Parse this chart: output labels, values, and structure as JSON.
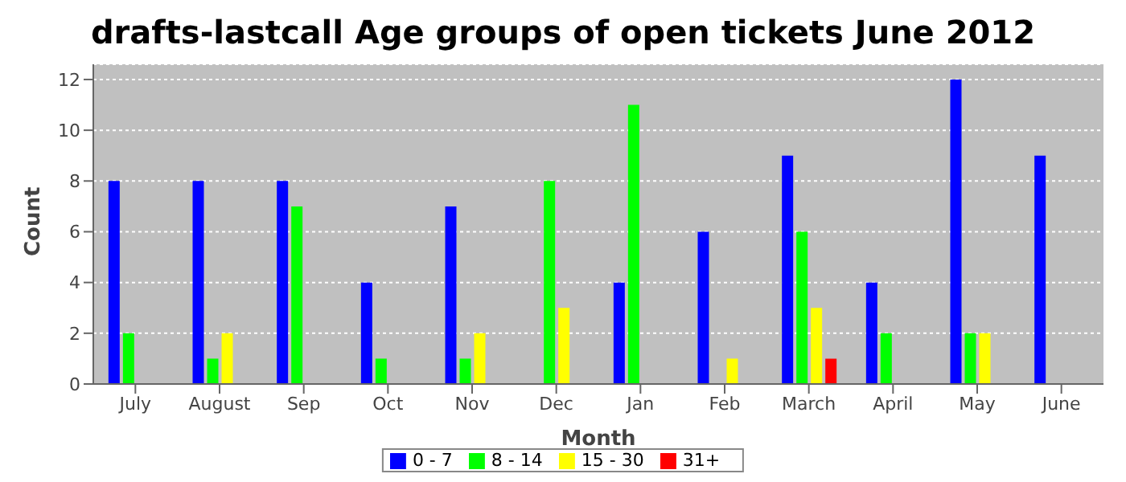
{
  "chart_data": {
    "type": "bar",
    "title": "drafts-lastcall Age groups of open tickets June 2012",
    "xlabel": "Month",
    "ylabel": "Count",
    "categories": [
      "July",
      "August",
      "Sep",
      "Oct",
      "Nov",
      "Dec",
      "Jan",
      "Feb",
      "March",
      "April",
      "May",
      "June"
    ],
    "series": [
      {
        "name": "0 - 7",
        "color": "#0000ff",
        "values": [
          8,
          8,
          8,
          4,
          7,
          0,
          4,
          6,
          9,
          4,
          12,
          9
        ]
      },
      {
        "name": "8 - 14",
        "color": "#00ff00",
        "values": [
          2,
          1,
          7,
          1,
          1,
          8,
          11,
          0,
          6,
          2,
          2,
          0
        ]
      },
      {
        "name": "15 - 30",
        "color": "#ffff00",
        "values": [
          0,
          2,
          0,
          0,
          2,
          3,
          0,
          1,
          3,
          0,
          2,
          0
        ]
      },
      {
        "name": "31+",
        "color": "#ff0000",
        "values": [
          0,
          0,
          0,
          0,
          0,
          0,
          0,
          0,
          1,
          0,
          0,
          0
        ]
      }
    ],
    "ylim": [
      0,
      12.6
    ],
    "yticks": [
      0,
      2,
      4,
      6,
      8,
      10,
      12
    ],
    "grid": "y",
    "legend": "bottom"
  }
}
